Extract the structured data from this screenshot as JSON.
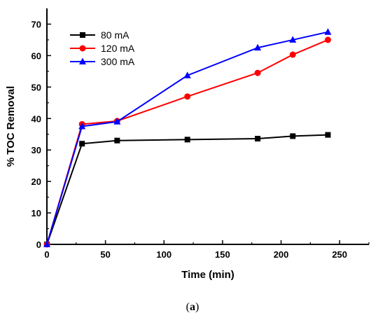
{
  "caption": {
    "open": "(",
    "letter": "a",
    "close": ")"
  },
  "chart_data": {
    "type": "line",
    "title": "",
    "xlabel": "Time (min)",
    "ylabel": "% TOC Removal",
    "xlim": [
      0,
      275
    ],
    "ylim": [
      0,
      75
    ],
    "xticks": [
      0,
      50,
      100,
      150,
      200,
      250
    ],
    "yticks": [
      0,
      10,
      20,
      30,
      40,
      50,
      60,
      70
    ],
    "grid": false,
    "legend_position": "top-left",
    "series": [
      {
        "name": "80 mA",
        "color": "#000000",
        "marker": "square",
        "x": [
          0,
          30,
          60,
          120,
          180,
          210,
          240
        ],
        "y": [
          0,
          32,
          33,
          33.3,
          33.6,
          34.4,
          34.8
        ]
      },
      {
        "name": "120 mA",
        "color": "#ff0000",
        "marker": "circle",
        "x": [
          0,
          30,
          60,
          120,
          180,
          210,
          240
        ],
        "y": [
          0,
          38.2,
          39.2,
          47,
          54.5,
          60.3,
          65
        ]
      },
      {
        "name": "300 mA",
        "color": "#0000ff",
        "marker": "triangle",
        "x": [
          0,
          30,
          60,
          120,
          180,
          210,
          240
        ],
        "y": [
          0,
          37.5,
          39,
          53.7,
          62.5,
          65,
          67.5
        ]
      }
    ]
  }
}
